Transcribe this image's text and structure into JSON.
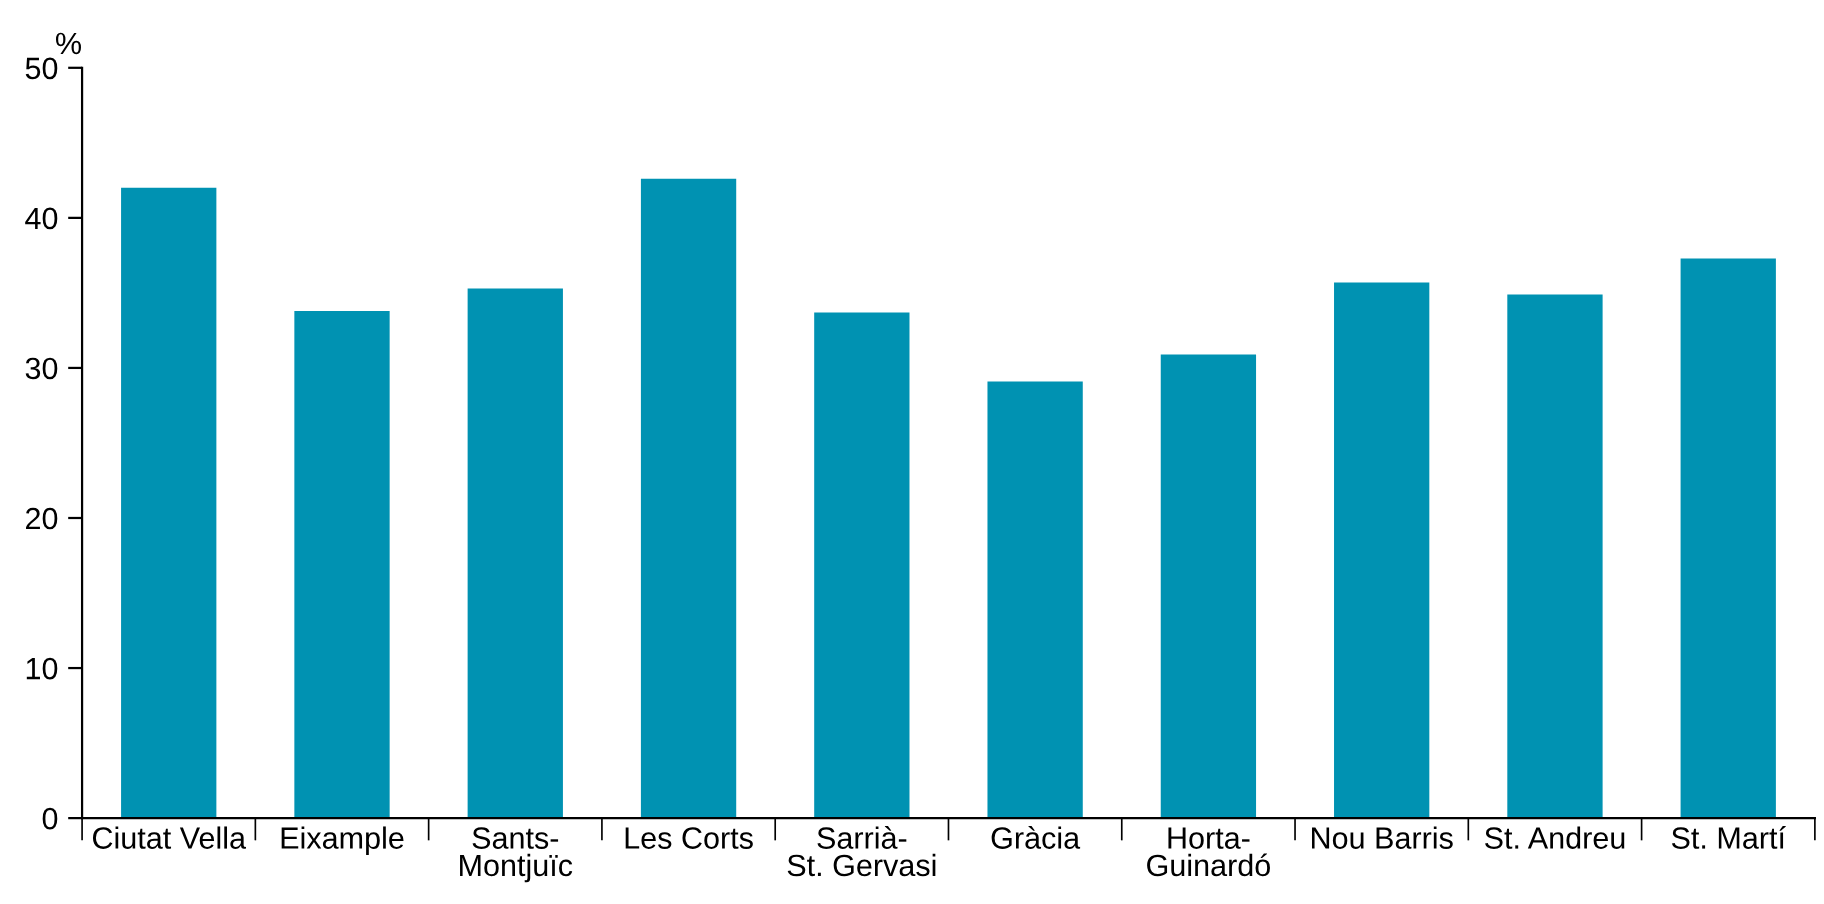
{
  "chart_data": {
    "type": "bar",
    "ylabel": "%",
    "categories": [
      "Ciutat Vella",
      "Eixample",
      "Sants-\nMontjuïc",
      "Les Corts",
      "Sarrià-\nSt. Gervasi",
      "Gràcia",
      "Horta-\nGuinardó",
      "Nou Barris",
      "St. Andreu",
      "St. Martí"
    ],
    "values": [
      42.0,
      33.8,
      35.3,
      42.6,
      33.7,
      29.1,
      30.9,
      35.7,
      34.9,
      37.3
    ],
    "color": "#0092b2",
    "ylim": [
      0,
      50
    ],
    "yticks": [
      0,
      10,
      20,
      30,
      40,
      50
    ],
    "grid": false
  }
}
